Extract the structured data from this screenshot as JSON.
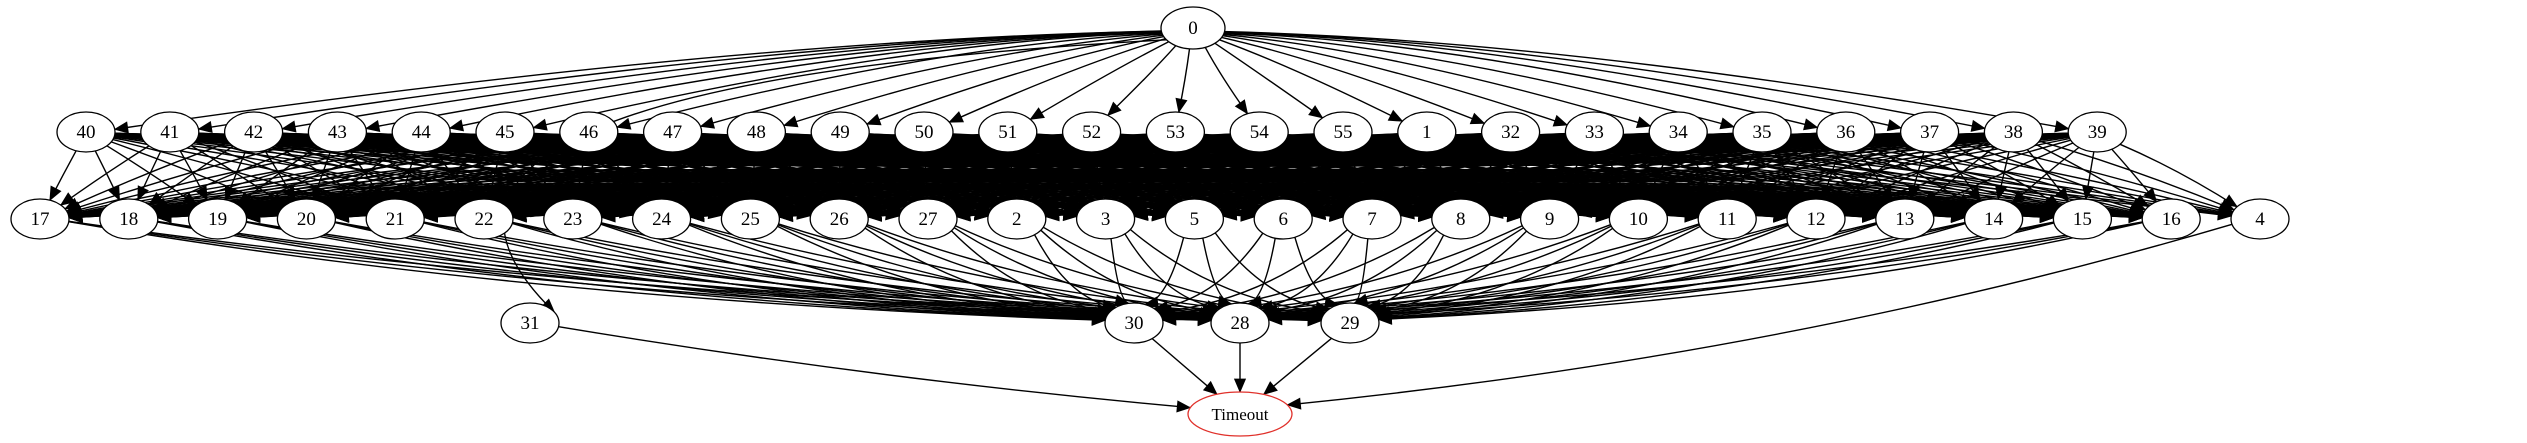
{
  "graph": {
    "root": "0",
    "terminal": "Timeout",
    "colors": {
      "default_stroke": "#000000",
      "terminal_stroke": "#e0302a",
      "background": "#ffffff"
    },
    "rows": {
      "top": [
        "0"
      ],
      "second": [
        "40",
        "41",
        "42",
        "43",
        "44",
        "45",
        "46",
        "47",
        "48",
        "49",
        "50",
        "51",
        "52",
        "53",
        "54",
        "55",
        "1",
        "32",
        "33",
        "34",
        "35",
        "36",
        "37",
        "38",
        "39"
      ],
      "third": [
        "17",
        "18",
        "19",
        "20",
        "21",
        "22",
        "23",
        "24",
        "25",
        "26",
        "27",
        "2",
        "3",
        "5",
        "6",
        "7",
        "8",
        "9",
        "10",
        "11",
        "12",
        "13",
        "14",
        "15",
        "16",
        "4"
      ],
      "fourth": [
        "31",
        "30",
        "28",
        "29"
      ],
      "bottom": [
        "Timeout"
      ]
    },
    "root_children": [
      "40",
      "41",
      "42",
      "43",
      "44",
      "45",
      "46",
      "47",
      "48",
      "49",
      "50",
      "51",
      "52",
      "53",
      "54",
      "55",
      "1",
      "32",
      "33",
      "34",
      "35",
      "36",
      "37",
      "38",
      "39",
      "31"
    ],
    "hub_nodes": [
      "40",
      "41",
      "42",
      "43",
      "44",
      "45",
      "46",
      "47",
      "48",
      "49",
      "50",
      "51",
      "52",
      "53",
      "54",
      "55",
      "1",
      "32",
      "33",
      "34",
      "35",
      "36",
      "37",
      "38",
      "39"
    ],
    "mid_nodes": [
      "17",
      "18",
      "19",
      "20",
      "21",
      "22",
      "23",
      "24",
      "25",
      "26",
      "27",
      "2",
      "3",
      "5",
      "6",
      "7",
      "8",
      "9",
      "10",
      "11",
      "12",
      "13",
      "14",
      "15",
      "16"
    ],
    "sinks": [
      "30",
      "28",
      "29"
    ],
    "to_terminal": [
      "31",
      "30",
      "28",
      "29",
      "4"
    ]
  }
}
